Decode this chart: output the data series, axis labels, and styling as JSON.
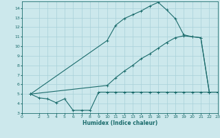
{
  "xlabel": "Humidex (Indice chaleur)",
  "background_color": "#cce8ec",
  "line_color": "#1a6b6b",
  "grid_color": "#a8d0d8",
  "xlim": [
    0,
    23
  ],
  "ylim": [
    3,
    14.7
  ],
  "yticks": [
    3,
    4,
    5,
    6,
    7,
    8,
    9,
    10,
    11,
    12,
    13,
    14
  ],
  "xticks": [
    0,
    2,
    3,
    4,
    5,
    6,
    7,
    8,
    9,
    10,
    11,
    12,
    13,
    14,
    15,
    16,
    17,
    18,
    19,
    20,
    21,
    22,
    23
  ],
  "line1_x": [
    1,
    2,
    3,
    4,
    5,
    6,
    7,
    8,
    9,
    10,
    11,
    12,
    13,
    14,
    15,
    16,
    17,
    18,
    19,
    20,
    21,
    22,
    23
  ],
  "line1_y": [
    5.0,
    4.6,
    4.5,
    4.1,
    4.5,
    3.3,
    3.3,
    3.3,
    5.2,
    5.2,
    5.2,
    5.2,
    5.2,
    5.2,
    5.2,
    5.2,
    5.2,
    5.2,
    5.2,
    5.2,
    5.2,
    5.2,
    5.2
  ],
  "line2_x": [
    1,
    10,
    11,
    12,
    13,
    14,
    15,
    16,
    17,
    18,
    19,
    20,
    21,
    22,
    23
  ],
  "line2_y": [
    5.0,
    10.6,
    12.2,
    12.9,
    13.3,
    13.7,
    14.2,
    14.6,
    13.8,
    12.9,
    11.2,
    11.0,
    10.9,
    5.2,
    5.2
  ],
  "line3_x": [
    1,
    10,
    11,
    12,
    13,
    14,
    15,
    16,
    17,
    18,
    19,
    20,
    21,
    22,
    23
  ],
  "line3_y": [
    5.0,
    5.9,
    6.7,
    7.4,
    8.0,
    8.7,
    9.2,
    9.8,
    10.4,
    10.9,
    11.1,
    11.0,
    10.9,
    5.2,
    5.2
  ]
}
